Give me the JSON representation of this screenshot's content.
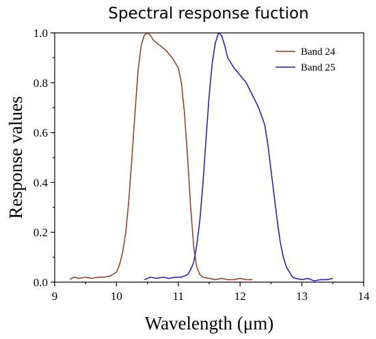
{
  "chart_data": {
    "type": "line",
    "title": "Spectral response fuction",
    "xlabel": "Wavelength (μm)",
    "ylabel": "Response values",
    "xlim": [
      9,
      14
    ],
    "ylim": [
      0,
      1.0
    ],
    "xticks": [
      "9",
      "10",
      "11",
      "12",
      "13",
      "14"
    ],
    "yticks": [
      "0.0",
      "0.2",
      "0.4",
      "0.6",
      "0.8",
      "1.0"
    ],
    "grid": false,
    "legend_position": "top-right",
    "series": [
      {
        "name": "Band 24",
        "color": "#8B3A1A",
        "x": [
          9.25,
          9.3,
          9.4,
          9.5,
          9.6,
          9.7,
          9.8,
          9.9,
          10.0,
          10.05,
          10.1,
          10.15,
          10.2,
          10.25,
          10.3,
          10.35,
          10.4,
          10.45,
          10.5,
          10.55,
          10.6,
          10.65,
          10.7,
          10.8,
          10.9,
          11.0,
          11.05,
          11.1,
          11.15,
          11.2,
          11.25,
          11.3,
          11.35,
          11.4,
          11.5,
          11.6,
          11.7,
          11.8,
          11.9,
          12.0,
          12.1,
          12.2
        ],
        "y": [
          0.01,
          0.02,
          0.015,
          0.02,
          0.015,
          0.02,
          0.02,
          0.025,
          0.04,
          0.07,
          0.12,
          0.2,
          0.33,
          0.5,
          0.68,
          0.85,
          0.95,
          0.99,
          1.0,
          0.99,
          0.97,
          0.96,
          0.95,
          0.93,
          0.9,
          0.86,
          0.8,
          0.68,
          0.5,
          0.3,
          0.14,
          0.06,
          0.03,
          0.02,
          0.015,
          0.01,
          0.015,
          0.01,
          0.01,
          0.015,
          0.01,
          0.01
        ]
      },
      {
        "name": "Band 25",
        "color": "#1A12CC",
        "x": [
          10.45,
          10.55,
          10.65,
          10.75,
          10.85,
          10.95,
          11.05,
          11.1,
          11.15,
          11.2,
          11.25,
          11.3,
          11.35,
          11.4,
          11.45,
          11.5,
          11.55,
          11.6,
          11.65,
          11.7,
          11.75,
          11.8,
          11.9,
          12.0,
          12.1,
          12.2,
          12.3,
          12.4,
          12.45,
          12.5,
          12.55,
          12.6,
          12.65,
          12.7,
          12.75,
          12.8,
          12.85,
          12.9,
          13.0,
          13.1,
          13.2,
          13.3,
          13.4,
          13.5
        ],
        "y": [
          0.01,
          0.02,
          0.015,
          0.02,
          0.015,
          0.02,
          0.02,
          0.025,
          0.03,
          0.05,
          0.08,
          0.15,
          0.25,
          0.4,
          0.58,
          0.75,
          0.88,
          0.96,
          1.0,
          0.99,
          0.95,
          0.9,
          0.86,
          0.83,
          0.8,
          0.75,
          0.7,
          0.63,
          0.55,
          0.45,
          0.35,
          0.25,
          0.16,
          0.1,
          0.06,
          0.04,
          0.02,
          0.015,
          0.01,
          0.015,
          0.005,
          0.01,
          0.01,
          0.015
        ]
      }
    ]
  }
}
